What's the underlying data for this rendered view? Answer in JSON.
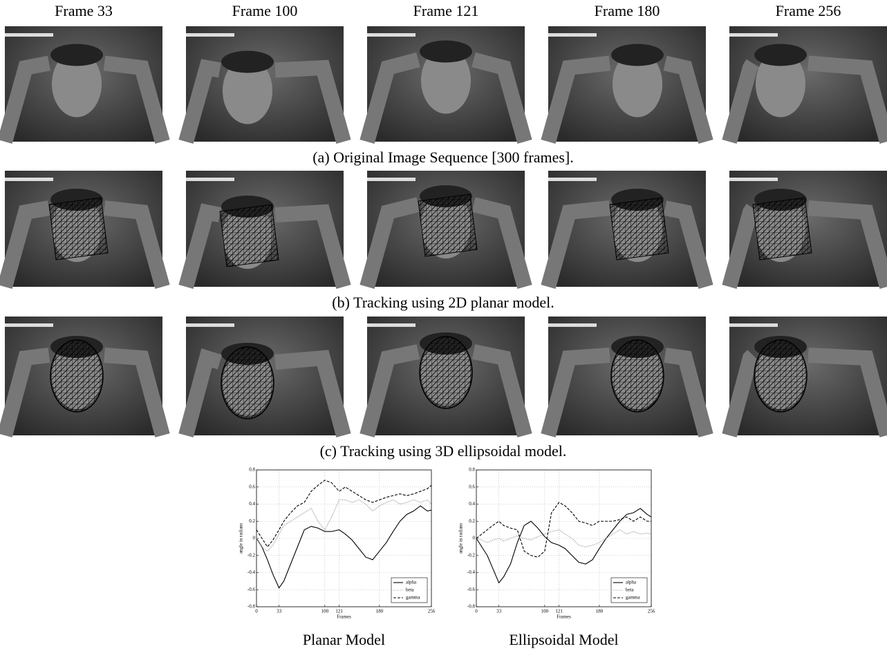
{
  "header": {
    "frame_labels": [
      "Frame 33",
      "Frame 100",
      "Frame 121",
      "Frame 180",
      "Frame 256"
    ]
  },
  "captions": [
    "(a) Original Image Sequence [300 frames].",
    "(b) Tracking using 2D planar model.",
    "(c) Tracking using 3D ellipsoidal model."
  ],
  "chart_captions": [
    "Planar Model",
    "Ellipsoidal Model"
  ],
  "chart_data": [
    {
      "type": "line",
      "xlabel": "Frames",
      "ylabel": "angle in radians",
      "x": [
        0,
        8,
        16,
        24,
        33,
        40,
        50,
        60,
        70,
        80,
        90,
        100,
        110,
        121,
        130,
        140,
        150,
        160,
        170,
        180,
        190,
        200,
        210,
        220,
        230,
        240,
        250,
        256
      ],
      "xlim": [
        0,
        256
      ],
      "xticks": [
        0,
        33,
        100,
        121,
        180,
        256
      ],
      "ylim": [
        -0.8,
        0.8
      ],
      "yticks": [
        0.8,
        0.6,
        0.4,
        0.2,
        0,
        -0.2,
        -0.4,
        -0.6,
        -0.8
      ],
      "grid": true,
      "legend": "lower right",
      "series": [
        {
          "name": "alpha",
          "color": "#000000",
          "dash": "solid",
          "values": [
            0,
            -0.1,
            -0.25,
            -0.42,
            -0.58,
            -0.5,
            -0.3,
            -0.1,
            0.1,
            0.14,
            0.12,
            0.08,
            0.08,
            0.1,
            0.05,
            -0.02,
            -0.12,
            -0.22,
            -0.25,
            -0.15,
            -0.05,
            0.08,
            0.2,
            0.28,
            0.32,
            0.38,
            0.32,
            0.33
          ]
        },
        {
          "name": "beta",
          "color": "#999999",
          "dash": "dotted",
          "values": [
            0,
            -0.1,
            -0.15,
            -0.08,
            0.05,
            0.15,
            0.2,
            0.25,
            0.3,
            0.35,
            0.2,
            0.1,
            0.25,
            0.45,
            0.45,
            0.42,
            0.45,
            0.4,
            0.32,
            0.38,
            0.42,
            0.45,
            0.4,
            0.42,
            0.45,
            0.42,
            0.45,
            0.4
          ]
        },
        {
          "name": "gamma",
          "color": "#000000",
          "dash": "dashed",
          "values": [
            0.1,
            0,
            -0.1,
            -0.02,
            0.1,
            0.2,
            0.3,
            0.38,
            0.42,
            0.55,
            0.62,
            0.68,
            0.65,
            0.55,
            0.6,
            0.55,
            0.5,
            0.45,
            0.42,
            0.45,
            0.48,
            0.5,
            0.52,
            0.5,
            0.52,
            0.55,
            0.58,
            0.62
          ]
        }
      ]
    },
    {
      "type": "line",
      "xlabel": "Frames",
      "ylabel": "angle in radians",
      "x": [
        0,
        8,
        16,
        24,
        33,
        40,
        50,
        60,
        70,
        80,
        90,
        100,
        110,
        121,
        130,
        140,
        150,
        160,
        170,
        180,
        190,
        200,
        210,
        220,
        230,
        240,
        250,
        256
      ],
      "xlim": [
        0,
        256
      ],
      "xticks": [
        0,
        33,
        100,
        121,
        180,
        256
      ],
      "ylim": [
        -0.8,
        0.8
      ],
      "yticks": [
        0.8,
        0.6,
        0.4,
        0.2,
        0,
        -0.2,
        -0.4,
        -0.6,
        -0.8
      ],
      "grid": true,
      "legend": "lower right",
      "series": [
        {
          "name": "alpha",
          "color": "#000000",
          "dash": "solid",
          "values": [
            0,
            -0.1,
            -0.2,
            -0.35,
            -0.52,
            -0.45,
            -0.3,
            -0.05,
            0.15,
            0.2,
            0.12,
            0.02,
            -0.05,
            -0.08,
            -0.12,
            -0.2,
            -0.28,
            -0.3,
            -0.25,
            -0.12,
            0,
            0.1,
            0.2,
            0.28,
            0.3,
            0.35,
            0.28,
            0.25
          ]
        },
        {
          "name": "beta",
          "color": "#999999",
          "dash": "dotted",
          "values": [
            0,
            -0.02,
            -0.05,
            -0.02,
            0,
            -0.03,
            0,
            0.03,
            0,
            -0.02,
            0.02,
            0.05,
            0.08,
            0.1,
            0.05,
            0,
            -0.08,
            -0.1,
            -0.08,
            -0.05,
            0,
            0.05,
            0.1,
            0.05,
            0.08,
            0.05,
            0.06,
            0.05
          ]
        },
        {
          "name": "gamma",
          "color": "#000000",
          "dash": "dashed",
          "values": [
            0,
            0.05,
            0.1,
            0.15,
            0.2,
            0.15,
            0.12,
            0.1,
            -0.15,
            -0.2,
            -0.22,
            -0.15,
            0.3,
            0.42,
            0.38,
            0.3,
            0.2,
            0.18,
            0.15,
            0.2,
            0.2,
            0.2,
            0.22,
            0.25,
            0.2,
            0.25,
            0.2,
            0.2
          ]
        }
      ]
    }
  ]
}
